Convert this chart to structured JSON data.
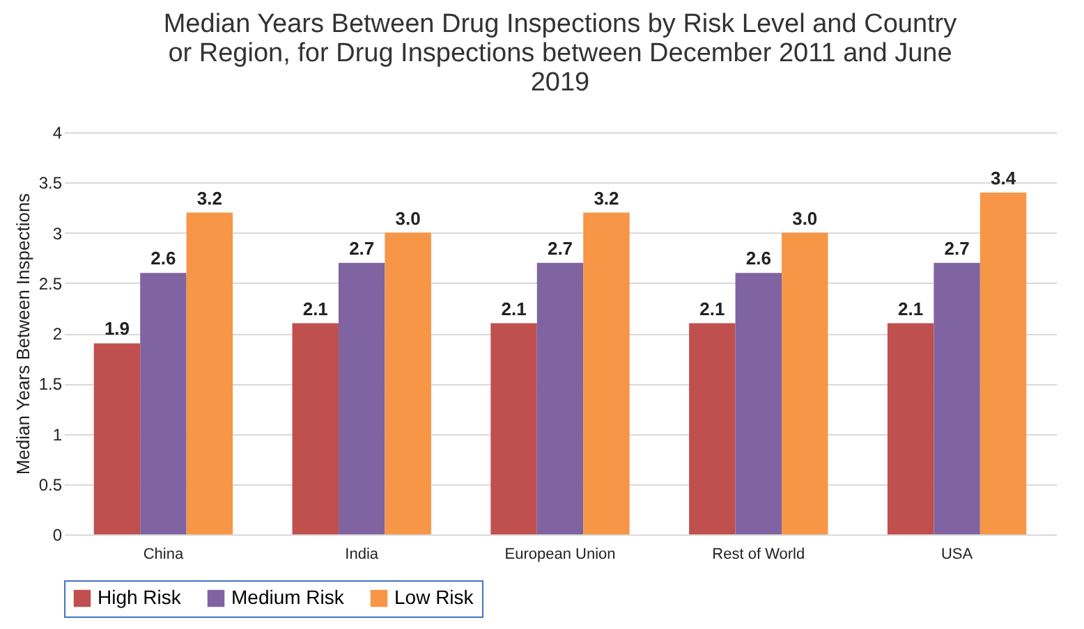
{
  "chart_data": {
    "type": "bar",
    "title": "Median Years Between Drug Inspections by Risk Level and Country or Region, for Drug Inspections between December 2011 and June 2019",
    "ylabel": "Median  Years Between Inspections",
    "categories": [
      "China",
      "India",
      "European Union",
      "Rest of World",
      "USA"
    ],
    "series": [
      {
        "name": "High Risk",
        "color": "#c0504d",
        "values": [
          1.9,
          2.1,
          2.1,
          2.1,
          2.1
        ],
        "value_labels": [
          "1.9",
          "2.1",
          "2.1",
          "2.1",
          "2.1"
        ]
      },
      {
        "name": "Medium Risk",
        "color": "#8064a2",
        "values": [
          2.6,
          2.7,
          2.7,
          2.6,
          2.7
        ],
        "value_labels": [
          "2.6",
          "2.7",
          "2.7",
          "2.6",
          "2.7"
        ]
      },
      {
        "name": "Low Risk",
        "color": "#f79646",
        "values": [
          3.2,
          3.0,
          3.2,
          3.0,
          3.4
        ],
        "value_labels": [
          "3.2",
          "3.0",
          "3.2",
          "3.0",
          "3.4"
        ]
      }
    ],
    "ylim": [
      0,
      4
    ],
    "yticks": [
      0,
      0.5,
      1,
      1.5,
      2,
      2.5,
      3,
      3.5,
      4
    ],
    "grid": "y",
    "legend": "bottom"
  }
}
